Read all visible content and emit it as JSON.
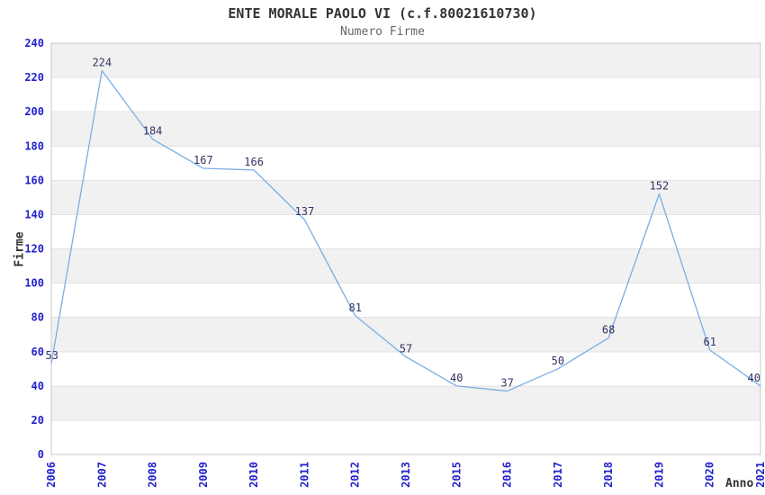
{
  "chart_data": {
    "type": "line",
    "title": "ENTE MORALE PAOLO VI (c.f.80021610730)",
    "subtitle": "Numero Firme",
    "xlabel": "Anno",
    "ylabel": "Firme",
    "categories": [
      "2006",
      "2007",
      "2008",
      "2009",
      "2010",
      "2011",
      "2012",
      "2013",
      "2015",
      "2016",
      "2017",
      "2018",
      "2019",
      "2020",
      "2021"
    ],
    "values": [
      53,
      224,
      184,
      167,
      166,
      137,
      81,
      57,
      40,
      37,
      50,
      68,
      152,
      61,
      40
    ],
    "ylim": [
      0,
      240
    ],
    "ytick_step": 20,
    "yticks": [
      "0",
      "20",
      "40",
      "60",
      "80",
      "100",
      "120",
      "140",
      "160",
      "180",
      "200",
      "220",
      "240"
    ],
    "legend_position": "none",
    "grid": "alternating horizontal bands every 20 units",
    "colors": {
      "line": "#7aaee4",
      "tick_labels": "#2222cc",
      "point_labels": "#333366",
      "band": "#f1f1f1",
      "gridline": "#e3e3e3",
      "border": "#c9c9c9",
      "title": "#333333",
      "subtitle": "#666666"
    }
  }
}
